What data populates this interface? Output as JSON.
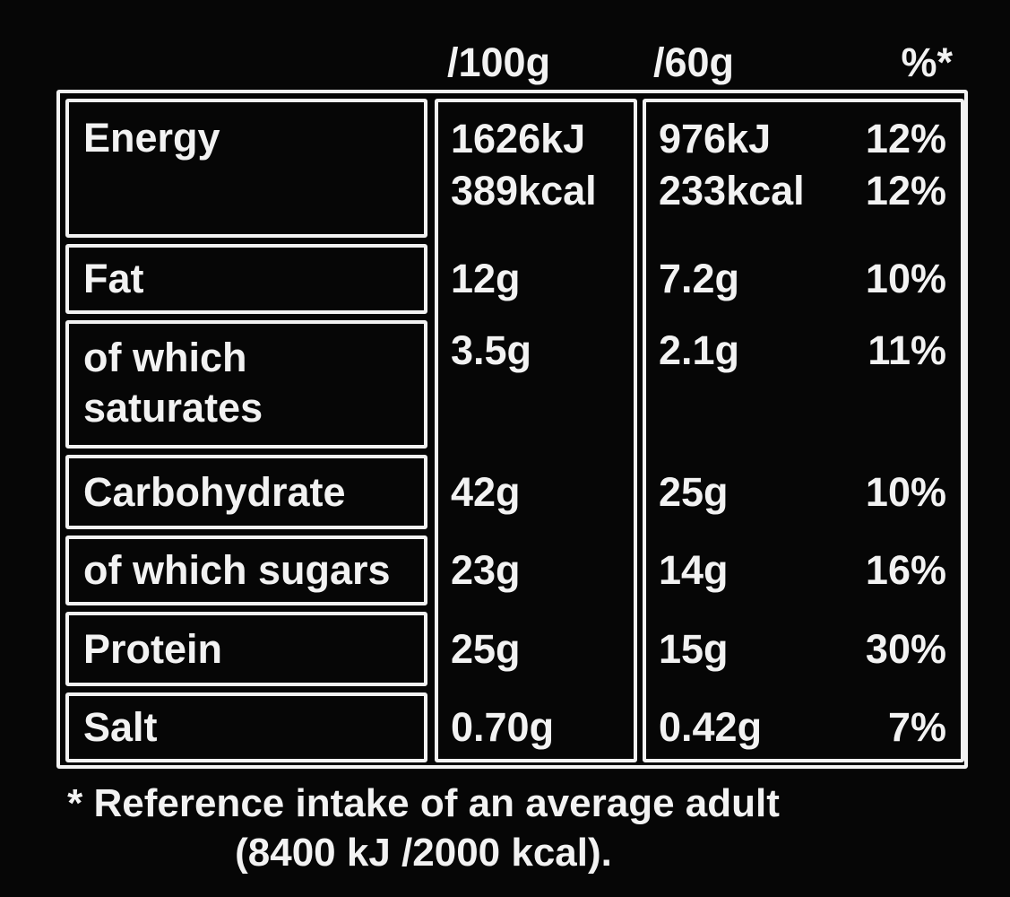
{
  "columns": {
    "per100g": "/100g",
    "per60g": "/60g",
    "percent": "%*"
  },
  "rows": [
    {
      "label": "Energy",
      "per100g": "1626kJ",
      "per100g_line2": "389kcal",
      "per60g": "976kJ",
      "per60g_line2": "233kcal",
      "percent": "12%",
      "percent_line2": "12%"
    },
    {
      "label": "Fat",
      "per100g": "12g",
      "per60g": "7.2g",
      "percent": "10%"
    },
    {
      "label": "of which saturates",
      "per100g": "3.5g",
      "per60g": "2.1g",
      "percent": "11%"
    },
    {
      "label": "Carbohydrate",
      "per100g": "42g",
      "per60g": "25g",
      "percent": "10%"
    },
    {
      "label": "of which sugars",
      "per100g": "23g",
      "per60g": "14g",
      "percent": "16%"
    },
    {
      "label": "Protein",
      "per100g": "25g",
      "per60g": "15g",
      "percent": "30%"
    },
    {
      "label": "Salt",
      "per100g": "0.70g",
      "per60g": "0.42g",
      "percent": "7%"
    }
  ],
  "footnote": {
    "line1": "* Reference intake of an average adult",
    "line2": "(8400 kJ /2000 kcal)."
  },
  "colors": {
    "background": "#060606",
    "foreground": "#f2f2f2",
    "border": "#f2f2f2"
  }
}
